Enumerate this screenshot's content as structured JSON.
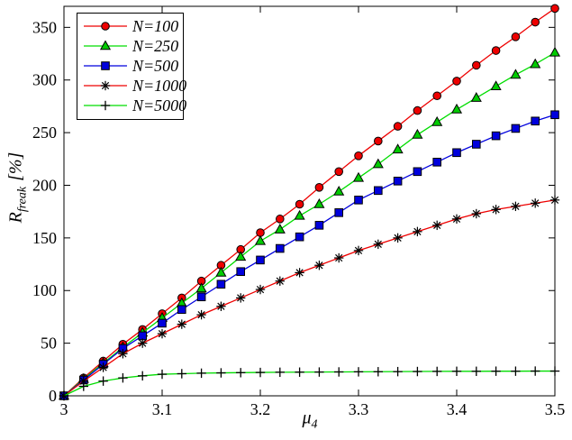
{
  "figure": {
    "background": "#ffffff",
    "axis_color": "#000000"
  },
  "chart_data": {
    "type": "line",
    "title": "",
    "xlabel": {
      "base": "μ",
      "sub": "4"
    },
    "ylabel": {
      "base": "R",
      "sub": "freak",
      "suffix": "[%]"
    },
    "xlim": [
      3.0,
      3.5
    ],
    "ylim": [
      0,
      370
    ],
    "grid": false,
    "legend_position": "top-left",
    "xticks": [
      {
        "v": 3.0,
        "label": "3"
      },
      {
        "v": 3.1,
        "label": "3.1"
      },
      {
        "v": 3.2,
        "label": "3.2"
      },
      {
        "v": 3.3,
        "label": "3.3"
      },
      {
        "v": 3.4,
        "label": "3.4"
      },
      {
        "v": 3.5,
        "label": "3.5"
      }
    ],
    "yticks": [
      0,
      50,
      100,
      150,
      200,
      250,
      300,
      350
    ],
    "x": [
      3.0,
      3.02,
      3.04,
      3.06,
      3.08,
      3.1,
      3.12,
      3.14,
      3.16,
      3.18,
      3.2,
      3.22,
      3.24,
      3.26,
      3.28,
      3.3,
      3.32,
      3.34,
      3.36,
      3.38,
      3.4,
      3.42,
      3.44,
      3.46,
      3.48,
      3.5
    ],
    "series": [
      {
        "name": "N=100",
        "line_color": "#ee0000",
        "marker": "circle",
        "marker_fill": "#ee0000",
        "values": [
          0,
          17,
          33,
          49,
          63,
          78,
          93,
          109,
          124,
          139,
          155,
          168,
          182,
          198,
          213,
          228,
          242,
          256,
          271,
          285,
          299,
          314,
          328,
          341,
          355,
          368
        ]
      },
      {
        "name": "N=250",
        "line_color": "#00dd00",
        "marker": "triangle",
        "marker_fill": "#00cc00",
        "values": [
          0,
          16,
          31,
          46,
          60,
          74,
          88,
          102,
          117,
          132,
          147,
          158,
          171,
          182,
          194,
          207,
          220,
          234,
          248,
          260,
          272,
          283,
          294,
          305,
          315,
          326
        ]
      },
      {
        "name": "N=500",
        "line_color": "#0000dd",
        "marker": "square",
        "marker_fill": "#0000dd",
        "values": [
          0,
          15,
          30,
          45,
          57,
          69,
          82,
          94,
          106,
          118,
          129,
          140,
          151,
          162,
          174,
          186,
          195,
          204,
          213,
          222,
          231,
          239,
          247,
          254,
          261,
          267
        ]
      },
      {
        "name": "N=1000",
        "line_color": "#ee0000",
        "marker": "asterisk",
        "marker_fill": "#000000",
        "values": [
          0,
          14,
          27,
          40,
          50,
          59,
          68,
          77,
          85,
          93,
          101,
          109,
          117,
          124,
          131,
          138,
          144,
          150,
          156,
          162,
          168,
          173,
          177,
          180,
          183,
          186
        ]
      },
      {
        "name": "N=5000",
        "line_color": "#00dd00",
        "marker": "plus",
        "marker_fill": "#000000",
        "values": [
          0,
          9,
          14,
          17,
          19,
          20.5,
          21,
          21.5,
          21.8,
          22,
          22.2,
          22.4,
          22.5,
          22.6,
          22.7,
          22.8,
          22.9,
          23,
          23.1,
          23.2,
          23.3,
          23.3,
          23.4,
          23.4,
          23.5,
          23.5
        ]
      }
    ]
  }
}
